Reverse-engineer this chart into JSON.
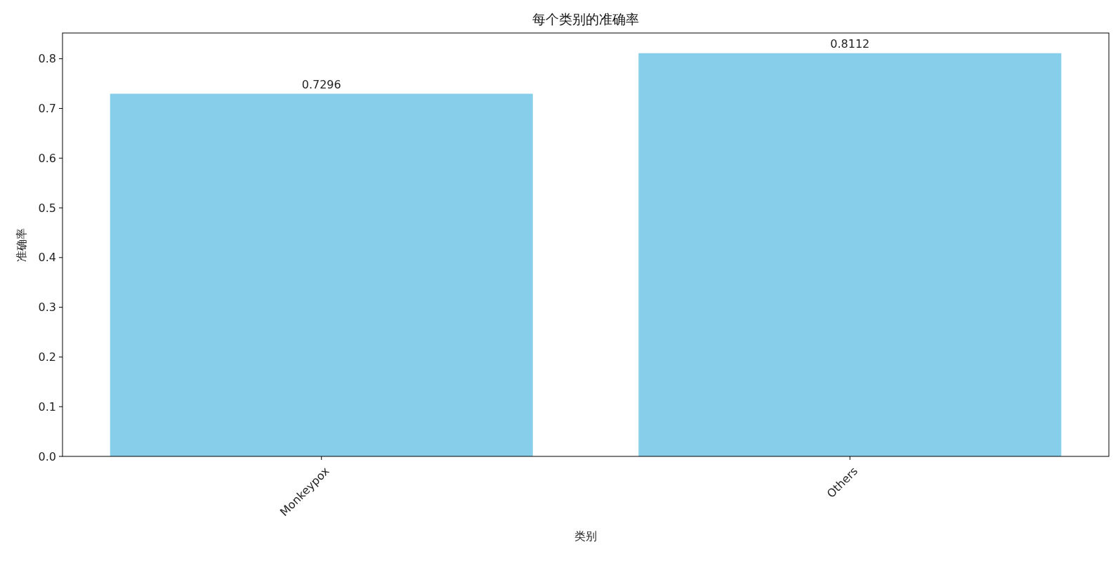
{
  "chart_data": {
    "type": "bar",
    "title": "每个类别的准确率",
    "xlabel": "类别",
    "ylabel": "准确率",
    "categories": [
      "Monkeypox",
      "Others"
    ],
    "values": [
      0.7296,
      0.8112
    ],
    "color": "#87ceeb",
    "ylim": [
      0,
      0.8518
    ],
    "yticks": [
      {
        "value": 0,
        "label": "0.0"
      },
      0.1,
      0.2,
      0.3,
      0.4,
      0.5,
      0.6,
      0.7,
      0.8
    ],
    "data_labels": true
  }
}
